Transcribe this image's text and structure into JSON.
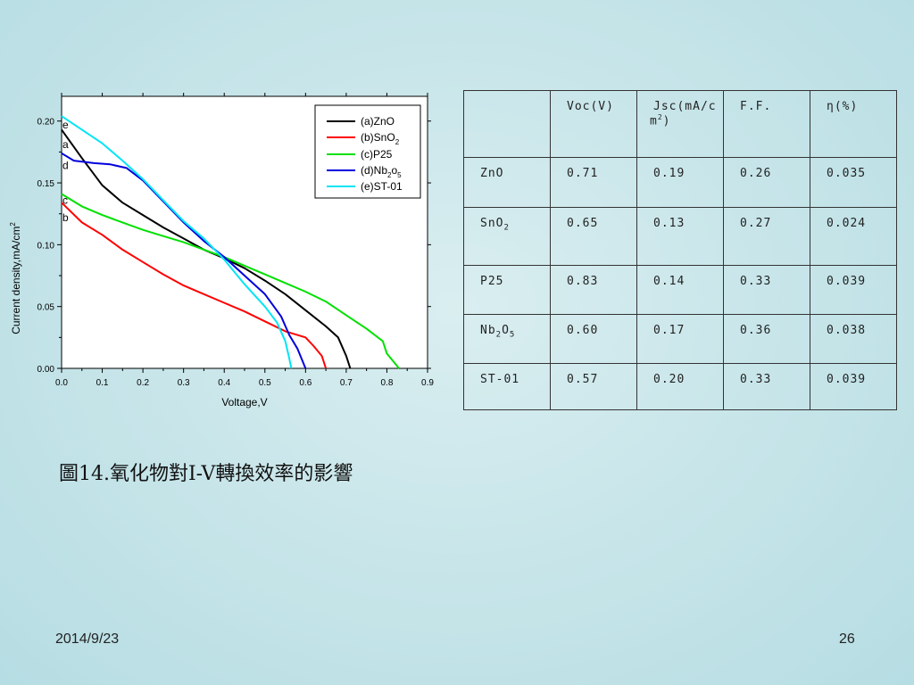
{
  "chart_data": {
    "type": "line",
    "xlabel": "Voltage,V",
    "ylabel": "Current density,mA/cm",
    "ylabel_sup": "2",
    "xlim": [
      0.0,
      0.9
    ],
    "ylim": [
      0.0,
      0.22
    ],
    "x_ticks": [
      "0.0",
      "0.1",
      "0.2",
      "0.3",
      "0.4",
      "0.5",
      "0.6",
      "0.7",
      "0.8",
      "0.9"
    ],
    "y_ticks": [
      "0.00",
      "0.05",
      "0.10",
      "0.15",
      "0.20"
    ],
    "legend_position": "top-right",
    "legend": [
      {
        "text": "(a)ZnO",
        "sub": ""
      },
      {
        "text": "(b)SnO",
        "sub": "2"
      },
      {
        "text": "(c)P25",
        "sub": ""
      },
      {
        "text": "(d)Nb",
        "sub": "2",
        "text2": "o",
        "sub2": "5"
      },
      {
        "text": "(e)ST-01",
        "sub": ""
      }
    ],
    "curve_tags": [
      {
        "label": "e",
        "y": 0.197
      },
      {
        "label": "a",
        "y": 0.181
      },
      {
        "label": "d",
        "y": 0.164
      },
      {
        "label": "c",
        "y": 0.136
      },
      {
        "label": "b",
        "y": 0.122
      }
    ],
    "series": [
      {
        "color": "#000000",
        "points": [
          [
            0,
            0.193
          ],
          [
            0.05,
            0.17
          ],
          [
            0.1,
            0.148
          ],
          [
            0.15,
            0.134
          ],
          [
            0.2,
            0.124
          ],
          [
            0.25,
            0.114
          ],
          [
            0.3,
            0.105
          ],
          [
            0.35,
            0.096
          ],
          [
            0.4,
            0.089
          ],
          [
            0.45,
            0.081
          ],
          [
            0.5,
            0.071
          ],
          [
            0.55,
            0.06
          ],
          [
            0.6,
            0.047
          ],
          [
            0.65,
            0.034
          ],
          [
            0.68,
            0.025
          ],
          [
            0.7,
            0.01
          ],
          [
            0.71,
            0.0
          ]
        ]
      },
      {
        "color": "#ff0000",
        "points": [
          [
            0,
            0.134
          ],
          [
            0.05,
            0.118
          ],
          [
            0.1,
            0.108
          ],
          [
            0.15,
            0.096
          ],
          [
            0.2,
            0.086
          ],
          [
            0.25,
            0.076
          ],
          [
            0.3,
            0.067
          ],
          [
            0.35,
            0.06
          ],
          [
            0.4,
            0.053
          ],
          [
            0.45,
            0.046
          ],
          [
            0.5,
            0.038
          ],
          [
            0.55,
            0.03
          ],
          [
            0.6,
            0.025
          ],
          [
            0.62,
            0.018
          ],
          [
            0.64,
            0.01
          ],
          [
            0.65,
            0.0
          ]
        ]
      },
      {
        "color": "#00e000",
        "points": [
          [
            0,
            0.141
          ],
          [
            0.05,
            0.131
          ],
          [
            0.1,
            0.124
          ],
          [
            0.15,
            0.118
          ],
          [
            0.2,
            0.112
          ],
          [
            0.25,
            0.107
          ],
          [
            0.3,
            0.102
          ],
          [
            0.35,
            0.096
          ],
          [
            0.4,
            0.09
          ],
          [
            0.45,
            0.083
          ],
          [
            0.5,
            0.076
          ],
          [
            0.55,
            0.069
          ],
          [
            0.6,
            0.062
          ],
          [
            0.65,
            0.054
          ],
          [
            0.7,
            0.043
          ],
          [
            0.75,
            0.032
          ],
          [
            0.79,
            0.022
          ],
          [
            0.8,
            0.012
          ],
          [
            0.82,
            0.004
          ],
          [
            0.83,
            0.0
          ]
        ]
      },
      {
        "color": "#0000dd",
        "points": [
          [
            0,
            0.174
          ],
          [
            0.03,
            0.168
          ],
          [
            0.08,
            0.166
          ],
          [
            0.12,
            0.165
          ],
          [
            0.16,
            0.162
          ],
          [
            0.2,
            0.152
          ],
          [
            0.25,
            0.135
          ],
          [
            0.3,
            0.118
          ],
          [
            0.35,
            0.103
          ],
          [
            0.4,
            0.09
          ],
          [
            0.45,
            0.075
          ],
          [
            0.5,
            0.06
          ],
          [
            0.54,
            0.042
          ],
          [
            0.56,
            0.027
          ],
          [
            0.58,
            0.016
          ],
          [
            0.6,
            0.0
          ]
        ]
      },
      {
        "color": "#00e5f5",
        "points": [
          [
            0,
            0.204
          ],
          [
            0.05,
            0.193
          ],
          [
            0.1,
            0.182
          ],
          [
            0.15,
            0.168
          ],
          [
            0.2,
            0.153
          ],
          [
            0.25,
            0.136
          ],
          [
            0.3,
            0.119
          ],
          [
            0.35,
            0.105
          ],
          [
            0.4,
            0.088
          ],
          [
            0.45,
            0.068
          ],
          [
            0.5,
            0.05
          ],
          [
            0.53,
            0.037
          ],
          [
            0.55,
            0.022
          ],
          [
            0.56,
            0.008
          ],
          [
            0.565,
            0.0
          ]
        ]
      }
    ]
  },
  "table": {
    "header": {
      "blank": "",
      "voc": "Voc(V)",
      "jsc_line1": " Jsc(mA/c",
      "jsc_line2": "m",
      "jsc_sup": "2",
      "jsc_close": ")",
      "ff": "F.F.",
      "eta": "η(%)"
    },
    "rows": [
      {
        "name": "ZnO",
        "sub": "",
        "name2": "",
        "sub2": "",
        "voc": "0.71",
        "jsc": "0.19",
        "ff": "0.26",
        "eta": "0.035"
      },
      {
        "name": "SnO",
        "sub": "2",
        "name2": "",
        "sub2": "",
        "voc": "0.65",
        "jsc": "0.13",
        "ff": "0.27",
        "eta": "0.024"
      },
      {
        "name": "P25",
        "sub": "",
        "name2": "",
        "sub2": "",
        "voc": "0.83",
        "jsc": "0.14",
        "ff": "0.33",
        "eta": "0.039"
      },
      {
        "name": "Nb",
        "sub": "2",
        "name2": "O",
        "sub2": "5",
        "voc": "0.60",
        "jsc": "0.17",
        "ff": "0.36",
        "eta": "0.038"
      },
      {
        "name": "ST-01",
        "sub": "",
        "name2": "",
        "sub2": "",
        "voc": "0.57",
        "jsc": "0.20",
        "ff": "0.33",
        "eta": "0.039"
      }
    ]
  },
  "caption": "圖14.氧化物對I-V轉換效率的影響",
  "footer": {
    "date": "2014/9/23",
    "page": "26"
  }
}
